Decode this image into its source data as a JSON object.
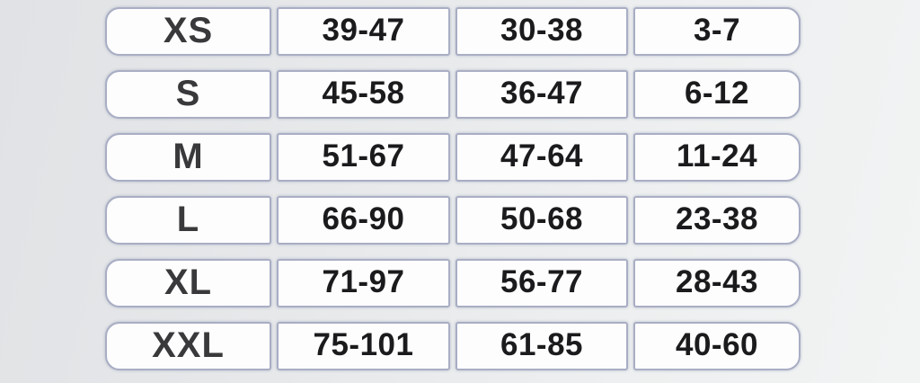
{
  "colors": {
    "background_left": "#e0e2e5",
    "background_right": "#f2f4f4",
    "cell_background": "#fdfdfe",
    "cell_border": "#a9aec4",
    "size_text": "#39393b",
    "value_text": "#1b1b1d"
  },
  "chart_data": {
    "type": "table",
    "description": "Size chart with six size rows and three numeric range columns (no visible headers)",
    "rows": [
      [
        "XS",
        "39-47",
        "30-38",
        "3-7"
      ],
      [
        "S",
        "45-58",
        "36-47",
        "6-12"
      ],
      [
        "M",
        "51-67",
        "47-64",
        "11-24"
      ],
      [
        "L",
        "66-90",
        "50-68",
        "23-38"
      ],
      [
        "XL",
        "71-97",
        "56-77",
        "28-43"
      ],
      [
        "XXL",
        "75-101",
        "61-85",
        "40-60"
      ]
    ]
  }
}
